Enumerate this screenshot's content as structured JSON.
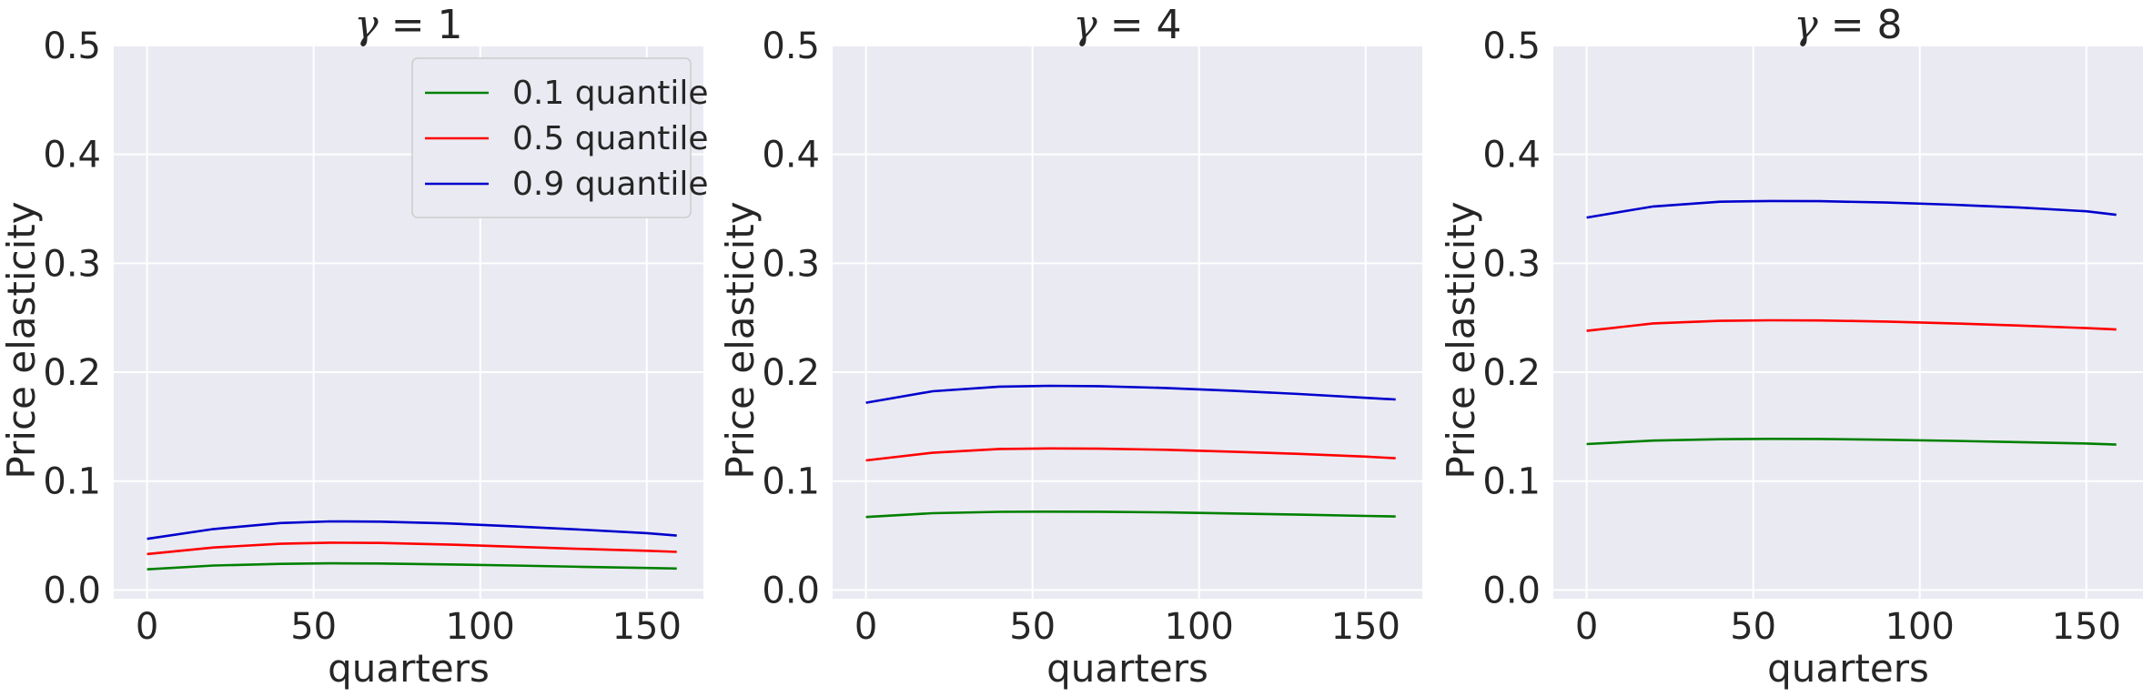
{
  "chart_data": [
    {
      "type": "line",
      "title_symbol": "γ",
      "title_eq": " = 1",
      "xlabel": "quarters",
      "ylabel": "Price elasticity",
      "xlim": [
        -10,
        167
      ],
      "ylim": [
        -0.008,
        0.5
      ],
      "xticks": [
        0,
        50,
        100,
        150
      ],
      "yticks": [
        0.0,
        0.1,
        0.2,
        0.3,
        0.4,
        0.5
      ],
      "grid": true,
      "legend_position": "top-right",
      "series": [
        {
          "name": "0.1 quantile",
          "color": "#008000",
          "x": [
            0,
            20,
            40,
            55,
            70,
            90,
            110,
            130,
            150,
            159
          ],
          "y": [
            0.019,
            0.0225,
            0.024,
            0.0245,
            0.0243,
            0.0235,
            0.0225,
            0.0213,
            0.0202,
            0.0197
          ]
        },
        {
          "name": "0.5 quantile",
          "color": "#ff0000",
          "x": [
            0,
            20,
            40,
            55,
            70,
            90,
            110,
            130,
            150,
            159
          ],
          "y": [
            0.033,
            0.039,
            0.0425,
            0.0435,
            0.0432,
            0.0418,
            0.0398,
            0.0378,
            0.036,
            0.035
          ]
        },
        {
          "name": "0.9 quantile",
          "color": "#0000cd",
          "x": [
            0,
            20,
            40,
            55,
            70,
            90,
            110,
            130,
            150,
            159
          ],
          "y": [
            0.047,
            0.056,
            0.0615,
            0.063,
            0.0628,
            0.0612,
            0.0585,
            0.0555,
            0.0522,
            0.05
          ]
        }
      ]
    },
    {
      "type": "line",
      "title_symbol": "γ",
      "title_eq": " = 4",
      "xlabel": "quarters",
      "ylabel": "Price elasticity",
      "xlim": [
        -10,
        167
      ],
      "ylim": [
        -0.008,
        0.5
      ],
      "xticks": [
        0,
        50,
        100,
        150
      ],
      "yticks": [
        0.0,
        0.1,
        0.2,
        0.3,
        0.4,
        0.5
      ],
      "grid": true,
      "series": [
        {
          "name": "0.1 quantile",
          "color": "#008000",
          "x": [
            0,
            20,
            40,
            55,
            70,
            90,
            110,
            130,
            150,
            159
          ],
          "y": [
            0.067,
            0.0705,
            0.0718,
            0.072,
            0.0719,
            0.0713,
            0.0703,
            0.0692,
            0.068,
            0.0675
          ]
        },
        {
          "name": "0.5 quantile",
          "color": "#ff0000",
          "x": [
            0,
            20,
            40,
            55,
            70,
            90,
            110,
            130,
            150,
            159
          ],
          "y": [
            0.119,
            0.126,
            0.1295,
            0.13,
            0.1298,
            0.1288,
            0.127,
            0.125,
            0.1225,
            0.121
          ]
        },
        {
          "name": "0.9 quantile",
          "color": "#0000cd",
          "x": [
            0,
            20,
            40,
            55,
            70,
            90,
            110,
            130,
            150,
            159
          ],
          "y": [
            0.172,
            0.1825,
            0.1868,
            0.1875,
            0.1872,
            0.1855,
            0.183,
            0.18,
            0.1765,
            0.175
          ]
        }
      ]
    },
    {
      "type": "line",
      "title_symbol": "γ",
      "title_eq": " = 8",
      "xlabel": "quarters",
      "ylabel": "Price elasticity",
      "xlim": [
        -10,
        167
      ],
      "ylim": [
        -0.008,
        0.5
      ],
      "xticks": [
        0,
        50,
        100,
        150
      ],
      "yticks": [
        0.0,
        0.1,
        0.2,
        0.3,
        0.4,
        0.5
      ],
      "grid": true,
      "series": [
        {
          "name": "0.1 quantile",
          "color": "#008000",
          "x": [
            0,
            20,
            40,
            55,
            70,
            90,
            110,
            130,
            150,
            159
          ],
          "y": [
            0.134,
            0.1372,
            0.1385,
            0.1388,
            0.1387,
            0.138,
            0.137,
            0.1358,
            0.1345,
            0.1335
          ]
        },
        {
          "name": "0.5 quantile",
          "color": "#ff0000",
          "x": [
            0,
            20,
            40,
            55,
            70,
            90,
            110,
            130,
            150,
            159
          ],
          "y": [
            0.238,
            0.2448,
            0.2472,
            0.2477,
            0.2475,
            0.2465,
            0.2448,
            0.2428,
            0.2405,
            0.2392
          ]
        },
        {
          "name": "0.9 quantile",
          "color": "#0000cd",
          "x": [
            0,
            20,
            40,
            55,
            70,
            90,
            110,
            130,
            150,
            159
          ],
          "y": [
            0.342,
            0.3522,
            0.3565,
            0.3572,
            0.357,
            0.3558,
            0.3538,
            0.3512,
            0.3478,
            0.3445
          ]
        }
      ]
    }
  ]
}
